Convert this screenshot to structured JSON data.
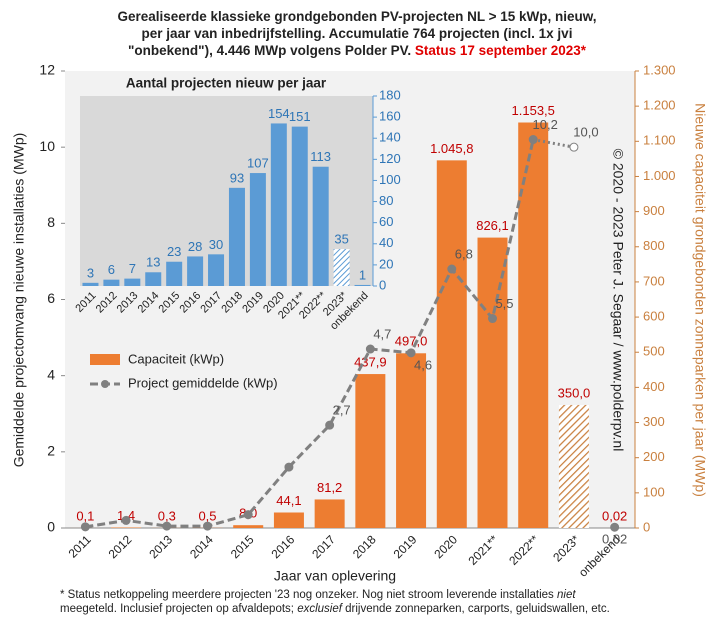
{
  "chart_data": {
    "type": "bar",
    "title_lines": [
      "Gerealiseerde klassieke grondgebonden PV-projecten NL > 15 kWp, nieuw,",
      "per jaar van inbedrijfstelling. Accumulatie 764 projecten (incl. 1x jvi",
      "\"onbekend\"), 4.446 MWp volgens Polder PV. "
    ],
    "title_status": "Status 17 september 2023*",
    "x_label": "Jaar van oplevering",
    "y_label": "Gemiddelde projectomvang nieuwe installaties (MWp)",
    "y2_label": "Nieuwe capaciteit grondgebonden zonneparken per jaar (MWp)",
    "copyright": "© 2020 - 2023 Peter J. Segaar / www.polderpv.nl",
    "categories": [
      "2011",
      "2012",
      "2013",
      "2014",
      "2015",
      "2016",
      "2017",
      "2018",
      "2019",
      "2020",
      "2021**",
      "2022**",
      "2023*",
      "onbekend"
    ],
    "ylim": [
      0,
      12
    ],
    "yticks": [
      0,
      2,
      4,
      6,
      8,
      10,
      12
    ],
    "y2lim": [
      0,
      1300
    ],
    "y2ticks": [
      0,
      100,
      200,
      300,
      400,
      500,
      600,
      700,
      800,
      900,
      {
        "value": 1000,
        "label": "1.000"
      },
      {
        "value": 1100,
        "label": "1.100"
      },
      {
        "value": 1200,
        "label": "1.200"
      },
      {
        "value": 1300,
        "label": "1.300"
      }
    ],
    "series": [
      {
        "name": "Capaciteit (kWp)",
        "color": "#ed7d31",
        "axis": "y2",
        "values": [
          0.1,
          1.4,
          0.3,
          0.5,
          8.0,
          44.1,
          81.2,
          437.9,
          497.0,
          1045.8,
          826.1,
          1153.5,
          350.0,
          0.02
        ],
        "value_labels": [
          "0,1",
          "1,4",
          "0,3",
          "0,5",
          "8,0",
          "44,1",
          "81,2",
          "437,9",
          "497,0",
          "1.045,8",
          "826,1",
          "1.153,5",
          "350,0",
          "0,02"
        ]
      },
      {
        "name": "Project gemiddelde (kWp)",
        "color": "#808080",
        "type": "line",
        "values": [
          0.03,
          0.2,
          0.05,
          0.05,
          0.35,
          1.6,
          2.7,
          4.7,
          4.6,
          6.8,
          5.5,
          10.2,
          10.0,
          0.02
        ],
        "value_labels": [
          null,
          null,
          null,
          null,
          null,
          null,
          "2,7",
          "4,7",
          "4,6",
          "6,8",
          "5,5",
          "10,2",
          "10,0",
          "0,02"
        ]
      }
    ],
    "inset": {
      "type": "bar",
      "title": "Aantal projecten nieuw per jaar",
      "color": "#5b9bd5",
      "values": [
        3,
        6,
        7,
        13,
        23,
        28,
        30,
        93,
        107,
        154,
        151,
        113,
        35,
        1
      ],
      "ylim": [
        0,
        180
      ],
      "yticks": [
        0,
        20,
        40,
        60,
        80,
        100,
        120,
        140,
        160,
        180
      ]
    },
    "footnote": [
      [
        {
          "text": "* Status netkoppeling meerdere projecten '23 nog onzeker. Nog niet stroom leverende installaties "
        },
        {
          "text": "niet",
          "italic": true
        }
      ],
      [
        {
          "text": "meegeteld. Inclusief projecten op afvaldepots; "
        },
        {
          "text": "exclusief",
          "italic": true
        },
        {
          "text": " drijvende zonneparken, carports, geluidswallen, etc."
        }
      ]
    ]
  }
}
